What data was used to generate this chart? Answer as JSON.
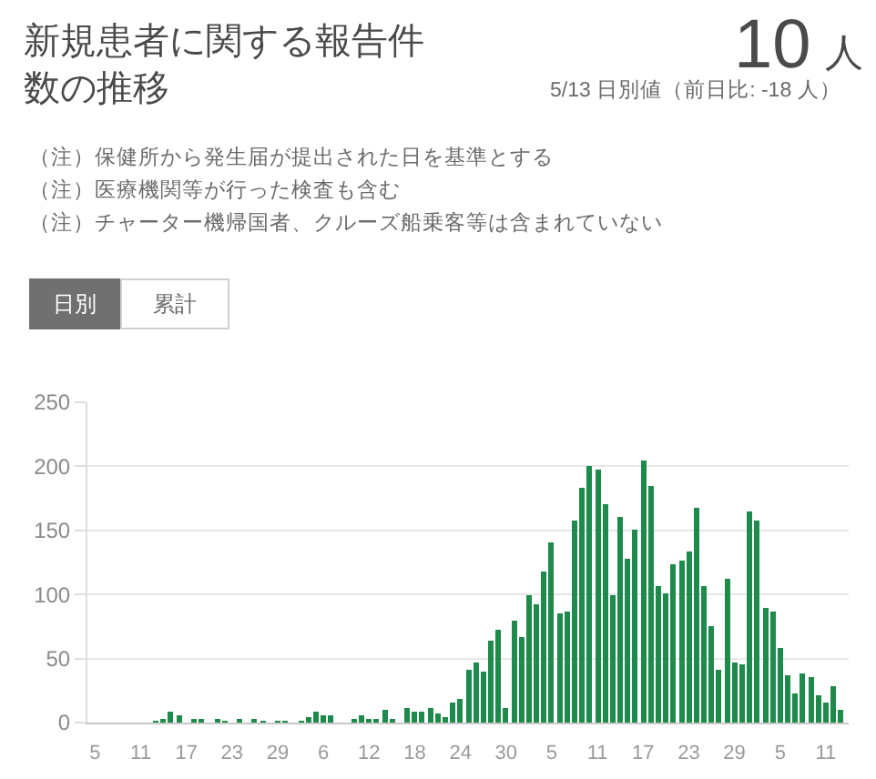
{
  "chart_data": {
    "type": "bar",
    "title": "新規患者に関する報告件数の推移",
    "annotations": [
      "10",
      "人",
      "5/13 日別値（前日比: -18 人）",
      "（注）保健所から発生届が提出された日を基準とする",
      "（注）医療機関等が行った検査も含む",
      "（注）チャーター機帰国者、クルーズ船乗客等は含まれていない",
      "日別",
      "累計"
    ],
    "x": [
      "--02-08",
      "--02-09",
      "--02-10",
      "--02-11",
      "--02-12",
      "--02-13",
      "--02-14",
      "--02-15",
      "--02-16",
      "--02-17",
      "--02-18",
      "--02-19",
      "--02-20",
      "--02-21",
      "--02-22",
      "--02-23",
      "--02-24",
      "--02-25",
      "--02-26",
      "--02-27",
      "--02-28",
      "--02-29",
      "--03-01",
      "--03-02",
      "--03-03",
      "--03-04",
      "--03-05",
      "--03-06",
      "--03-07",
      "--03-08",
      "--03-09",
      "--03-10",
      "--03-11",
      "--03-12",
      "--03-13",
      "--03-14",
      "--03-15",
      "--03-16",
      "--03-17",
      "--03-18",
      "--03-19",
      "--03-20",
      "--03-21",
      "--03-22",
      "--03-23",
      "--03-24",
      "--03-25",
      "--03-26",
      "--03-27",
      "--03-28",
      "--03-29",
      "--03-30",
      "--03-31",
      "--04-01",
      "--04-02",
      "--04-03",
      "--04-04",
      "--04-05",
      "--04-06",
      "--04-07",
      "--04-08",
      "--04-09",
      "--04-10",
      "--04-11",
      "--04-12",
      "--04-13",
      "--04-14",
      "--04-15",
      "--04-16",
      "--04-17",
      "--04-18",
      "--04-19",
      "--04-20",
      "--04-21",
      "--04-22",
      "--04-23",
      "--04-24",
      "--04-25",
      "--04-26",
      "--04-27",
      "--04-28",
      "--04-29",
      "--04-30",
      "--05-01",
      "--05-02",
      "--05-03",
      "--05-04",
      "--05-05",
      "--05-06",
      "--05-07",
      "--05-08",
      "--05-09",
      "--05-10",
      "--05-11",
      "--05-12",
      "--05-13"
    ],
    "values": [
      0,
      0,
      0,
      0,
      0,
      1,
      2,
      8,
      5,
      0,
      3,
      3,
      0,
      3,
      1,
      0,
      3,
      0,
      3,
      1,
      0,
      1,
      1,
      0,
      1,
      4,
      8,
      6,
      6,
      0,
      0,
      3,
      6,
      2,
      2,
      10,
      3,
      0,
      12,
      9,
      8,
      11,
      7,
      4,
      16,
      18,
      41,
      47,
      40,
      64,
      72,
      12,
      79,
      67,
      99,
      92,
      118,
      141,
      85,
      86,
      157,
      183,
      200,
      198,
      171,
      99,
      160,
      128,
      150,
      205,
      185,
      107,
      101,
      123,
      126,
      134,
      167,
      107,
      76,
      41,
      112,
      47,
      46,
      165,
      157,
      90,
      87,
      58,
      37,
      23,
      39,
      36,
      22,
      15,
      28,
      10
    ],
    "color": "#1e8a4c",
    "xlim": [
      "--02-04",
      "--05-14"
    ],
    "xticks": [
      {
        "value": "--02-05",
        "label": "5"
      },
      {
        "value": "--02-11",
        "label": "11"
      },
      {
        "value": "--02-17",
        "label": "17"
      },
      {
        "value": "--02-23",
        "label": "23"
      },
      {
        "value": "--02-29",
        "label": "29"
      },
      {
        "value": "--03-06",
        "label": "6"
      },
      {
        "value": "--03-12",
        "label": "12"
      },
      {
        "value": "--03-18",
        "label": "18"
      },
      {
        "value": "--03-24",
        "label": "24"
      },
      {
        "value": "--03-30",
        "label": "30"
      },
      {
        "value": "--04-05",
        "label": "5"
      },
      {
        "value": "--04-11",
        "label": "11"
      },
      {
        "value": "--04-17",
        "label": "17"
      },
      {
        "value": "--04-23",
        "label": "23"
      },
      {
        "value": "--04-29",
        "label": "29"
      },
      {
        "value": "--05-05",
        "label": "5"
      },
      {
        "value": "--05-11",
        "label": "11"
      }
    ],
    "ylim": [
      0,
      250
    ],
    "yticks": [
      0,
      50,
      100,
      150,
      200,
      250
    ],
    "grid": "y"
  }
}
